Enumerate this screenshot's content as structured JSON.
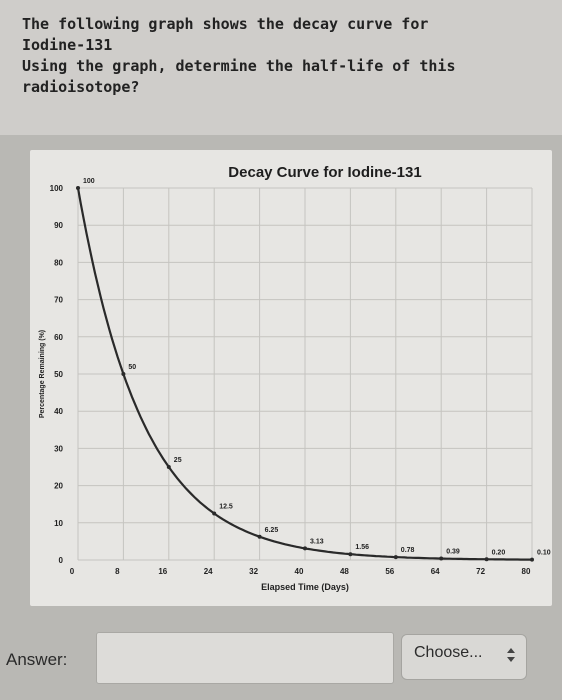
{
  "question": {
    "lines": [
      "The following graph shows the decay curve for",
      "Iodine-131",
      "Using the graph, determine the half-life of this",
      "radioisotope?"
    ]
  },
  "answer": {
    "label": "Answer:",
    "input_value": "",
    "select_label": "Choose..."
  },
  "colors": {
    "curve": "#2a2a2a",
    "grid": "#c5c4c0",
    "card": "#e7e6e3"
  },
  "chart_data": {
    "type": "line",
    "title": "Decay Curve for Iodine-131",
    "xlabel": "Elapsed Time (Days)",
    "ylabel": "Percentage Remaining (%)",
    "xlim": [
      0,
      80
    ],
    "ylim": [
      0,
      100
    ],
    "x_ticks": [
      0,
      8,
      16,
      24,
      32,
      40,
      48,
      56,
      64,
      72,
      80
    ],
    "y_ticks": [
      0,
      10,
      20,
      30,
      40,
      50,
      60,
      70,
      80,
      90,
      100
    ],
    "grid": true,
    "series": [
      {
        "x": [
          0,
          8,
          16,
          24,
          32,
          40,
          48,
          56,
          64,
          72,
          80
        ],
        "values": [
          100,
          50,
          25,
          12.5,
          6.25,
          3.13,
          1.56,
          0.78,
          0.39,
          0.2,
          0.1
        ],
        "labels": [
          "100",
          "50",
          "25",
          "12.5",
          "6.25",
          "3.13",
          "1.56",
          "0.78",
          "0.39",
          "0.20",
          "0.10"
        ]
      }
    ]
  }
}
